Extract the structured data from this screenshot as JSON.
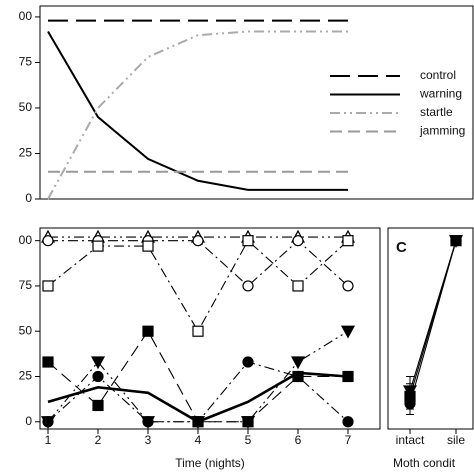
{
  "chart_data": [
    {
      "type": "line",
      "x": [
        1,
        2,
        3,
        4,
        5,
        6,
        7
      ],
      "xlim": [
        0.84,
        9.5
      ],
      "ylim": [
        0,
        106
      ],
      "yticks": [
        {
          "value": 100,
          "label": "00"
        },
        75,
        50,
        25,
        0
      ],
      "legend": "right",
      "series": [
        {
          "name": "control",
          "color": "#000000",
          "linestyle": "longdash",
          "values": [
            98,
            98,
            98,
            98,
            98,
            98,
            98
          ]
        },
        {
          "name": "warning",
          "color": "#000000",
          "linestyle": "solid",
          "values": [
            92,
            45,
            22,
            10,
            5,
            5,
            5
          ]
        },
        {
          "name": "startle",
          "color": "#aaaaaa",
          "linestyle": "dashdotdot",
          "values": [
            0,
            50,
            78,
            90,
            92,
            92,
            92
          ]
        },
        {
          "name": "jamming",
          "color": "#999999",
          "linestyle": "dashed",
          "values": [
            15,
            15,
            15,
            15,
            15,
            15,
            15
          ]
        }
      ]
    },
    {
      "type": "line",
      "x": [
        1,
        2,
        3,
        4,
        5,
        6,
        7
      ],
      "xlim": [
        0.84,
        7.64
      ],
      "ylim": [
        -4,
        107
      ],
      "xticks": [
        1,
        2,
        3,
        4,
        5,
        6,
        7
      ],
      "yticks": [
        {
          "value": 100,
          "label": "00"
        },
        75,
        50,
        25,
        0
      ],
      "xlabel": "Time (nights)",
      "series": [
        {
          "color": "#000000",
          "linestyle": "dashdotdot",
          "marker": "triangle-up",
          "marker_fill": "open",
          "values": [
            102,
            102,
            102,
            102,
            102,
            102,
            102
          ]
        },
        {
          "color": "#000000",
          "linestyle": "dashdot",
          "marker": "circle",
          "marker_fill": "open",
          "values": [
            100,
            100,
            100,
            100,
            75,
            100,
            75
          ]
        },
        {
          "color": "#000000",
          "linestyle": "dashdot",
          "marker": "square",
          "marker_fill": "open",
          "values": [
            75,
            97,
            97,
            50,
            100,
            75,
            100
          ]
        },
        {
          "color": "#000000",
          "linestyle": "dashed",
          "marker": "square",
          "marker_fill": "filled",
          "values": [
            33,
            9,
            50,
            0,
            0,
            25,
            25
          ]
        },
        {
          "color": "#000000",
          "linestyle": "dashdot",
          "marker": "circle",
          "marker_fill": "filled",
          "values": [
            0,
            25,
            0,
            0,
            33,
            25,
            0
          ]
        },
        {
          "color": "#000000",
          "linestyle": "dashdotdot",
          "marker": "triangle-down",
          "marker_fill": "filled",
          "values": [
            0,
            33,
            0,
            0,
            0,
            33,
            50
          ]
        },
        {
          "color": "#000000",
          "linestyle": "thick",
          "values": [
            11,
            19,
            16,
            0,
            11,
            27,
            25
          ]
        }
      ]
    },
    {
      "type": "line",
      "title": "C",
      "categories": [
        "intact",
        "sile"
      ],
      "ylim": [
        -4,
        107
      ],
      "xlabel": "Moth condit",
      "series": [
        {
          "color": "#000000",
          "linestyle": "solid",
          "marker": "triangle-down",
          "marker_fill": "filled",
          "values": [
            17,
            100
          ],
          "errors": [
            8,
            0
          ]
        },
        {
          "color": "#000000",
          "linestyle": "solid",
          "marker": "square",
          "marker_fill": "filled",
          "values": [
            14,
            100
          ],
          "errors": [
            7,
            0
          ]
        },
        {
          "color": "#000000",
          "linestyle": "solid",
          "marker": "circle",
          "marker_fill": "filled",
          "values": [
            10,
            100
          ],
          "errors": [
            6,
            0
          ]
        }
      ]
    }
  ]
}
